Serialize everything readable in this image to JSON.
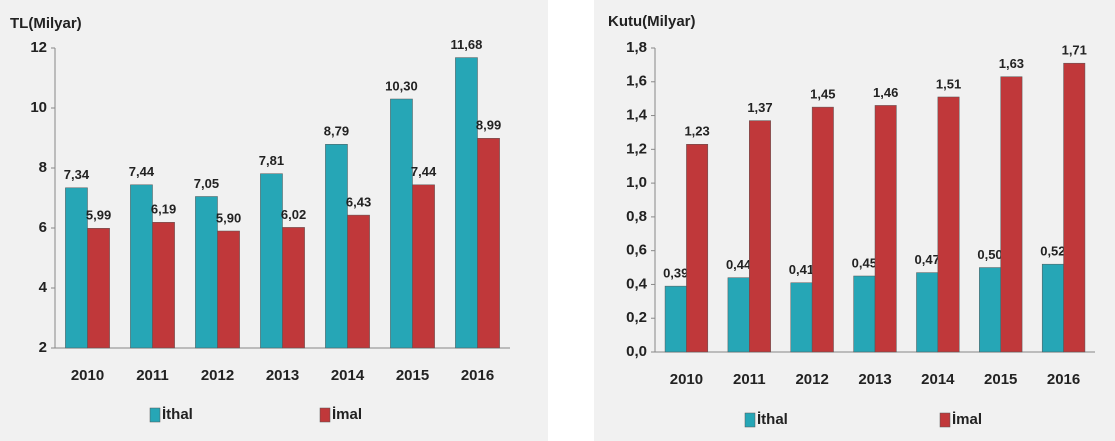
{
  "chart_data": [
    {
      "type": "bar",
      "ylabel": "TL(Milyar)",
      "categories": [
        "2010",
        "2011",
        "2012",
        "2013",
        "2014",
        "2015",
        "2016"
      ],
      "series": [
        {
          "name": "İthal",
          "color": "#26a6b6",
          "values": [
            7.34,
            7.44,
            7.05,
            7.81,
            8.79,
            10.3,
            11.68
          ],
          "value_labels": [
            "7,34",
            "7,44",
            "7,05",
            "7,81",
            "8,79",
            "10,30",
            "11,68"
          ]
        },
        {
          "name": "İmal",
          "color": "#c0383a",
          "values": [
            5.99,
            6.19,
            5.9,
            6.02,
            6.43,
            7.44,
            8.99
          ],
          "value_labels": [
            "5,99",
            "6,19",
            "5,90",
            "6,02",
            "6,43",
            "7,44",
            "8,99"
          ]
        }
      ],
      "ylim": [
        2,
        12
      ],
      "yticks": [
        2,
        4,
        6,
        8,
        10,
        12
      ]
    },
    {
      "type": "bar",
      "ylabel": "Kutu(Milyar)",
      "categories": [
        "2010",
        "2011",
        "2012",
        "2013",
        "2014",
        "2015",
        "2016"
      ],
      "series": [
        {
          "name": "İthal",
          "color": "#26a6b6",
          "values": [
            0.39,
            0.44,
            0.41,
            0.45,
            0.47,
            0.5,
            0.52
          ],
          "value_labels": [
            "0,39",
            "0,44",
            "0,41",
            "0,45",
            "0,47",
            "0,50",
            "0,52"
          ]
        },
        {
          "name": "İmal",
          "color": "#c0383a",
          "values": [
            1.23,
            1.37,
            1.45,
            1.46,
            1.51,
            1.63,
            1.71
          ],
          "value_labels": [
            "1,23",
            "1,37",
            "1,45",
            "1,46",
            "1,51",
            "1,63",
            "1,71"
          ]
        }
      ],
      "ylim": [
        0,
        1.8
      ],
      "yticks": [
        {
          "value": 0,
          "label": "0,0"
        },
        {
          "value": 0.2,
          "label": "0,2"
        },
        {
          "value": 0.4,
          "label": "0,4"
        },
        {
          "value": 0.6,
          "label": "0,6"
        },
        {
          "value": 0.8,
          "label": "0,8"
        },
        {
          "value": 1.0,
          "label": "1,0"
        },
        {
          "value": 1.2,
          "label": "1,2"
        },
        {
          "value": 1.4,
          "label": "1,4"
        },
        {
          "value": 1.6,
          "label": "1,6"
        },
        {
          "value": 1.8,
          "label": "1,8"
        }
      ]
    }
  ]
}
